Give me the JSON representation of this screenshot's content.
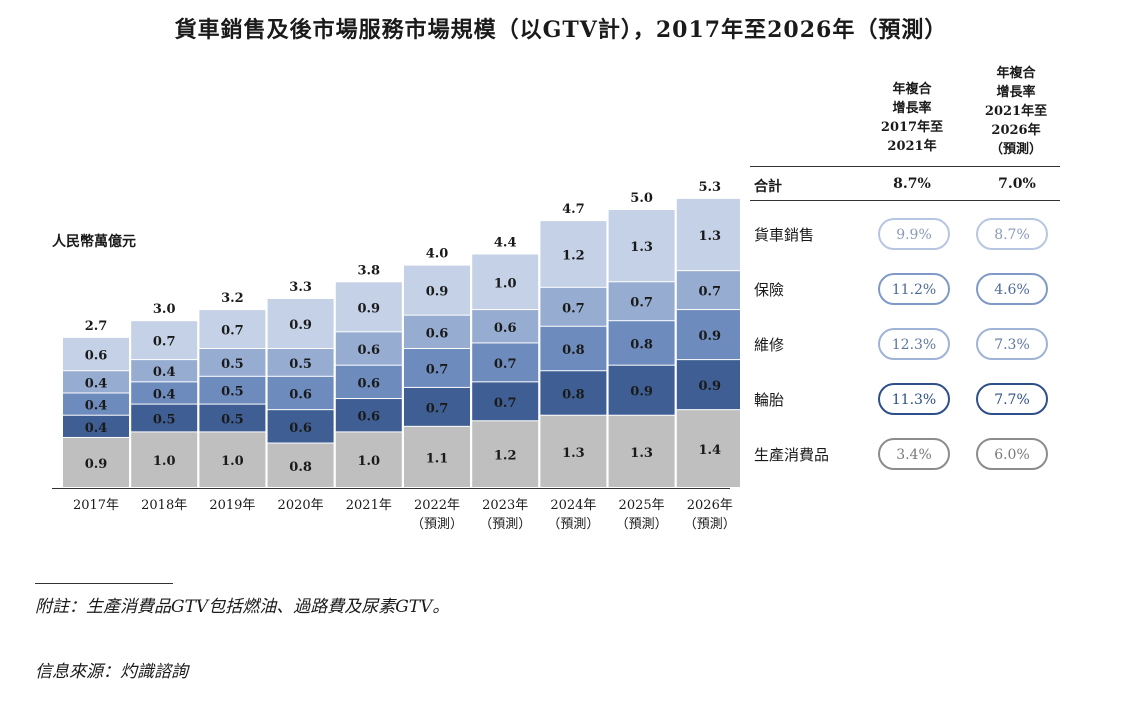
{
  "title": "貨車銷售及後市場服務市場規模（以GTV計），2017年至2026年（預測）",
  "chart_data": {
    "type": "bar",
    "stacked": true,
    "unit_label": "人民幣萬億元",
    "categories": [
      [
        "2017年"
      ],
      [
        "2018年"
      ],
      [
        "2019年"
      ],
      [
        "2020年"
      ],
      [
        "2021年"
      ],
      [
        "2022年",
        "（預測）"
      ],
      [
        "2023年",
        "（預測）"
      ],
      [
        "2024年",
        "（預測）"
      ],
      [
        "2025年",
        "（預測）"
      ],
      [
        "2026年",
        "（預測）"
      ]
    ],
    "totals": [
      "2.7",
      "3.0",
      "3.2",
      "3.3",
      "3.8",
      "4.0",
      "4.4",
      "4.7",
      "5.0",
      "5.3"
    ],
    "series": [
      {
        "name": "生產消費品",
        "color": "#bfbfbf",
        "values": [
          0.9,
          1.0,
          1.0,
          0.8,
          1.0,
          1.1,
          1.2,
          1.3,
          1.3,
          1.4
        ]
      },
      {
        "name": "輪胎",
        "color": "#3f5f94",
        "values": [
          0.4,
          0.5,
          0.5,
          0.6,
          0.6,
          0.7,
          0.7,
          0.8,
          0.9,
          0.9
        ]
      },
      {
        "name": "維修",
        "color": "#6d8bbd",
        "values": [
          0.4,
          0.4,
          0.5,
          0.6,
          0.6,
          0.7,
          0.7,
          0.8,
          0.8,
          0.9
        ]
      },
      {
        "name": "保險",
        "color": "#97acd1",
        "values": [
          0.4,
          0.4,
          0.5,
          0.5,
          0.6,
          0.6,
          0.6,
          0.7,
          0.7,
          0.7
        ]
      },
      {
        "name": "貨車銷售",
        "color": "#c5d1e6",
        "values": [
          0.6,
          0.7,
          0.7,
          0.9,
          0.9,
          0.9,
          1.0,
          1.2,
          1.3,
          1.3
        ]
      }
    ],
    "ylim": [
      0,
      5.5
    ]
  },
  "cagr_table": {
    "header_1": [
      "年複合",
      "增長率",
      "2017年至",
      "2021年"
    ],
    "header_2": [
      "年複合",
      "增長率",
      "2021年至",
      "2026年",
      "（預測）"
    ],
    "total_label": "合計",
    "total_1": "8.7%",
    "total_2": "7.0%",
    "rows": [
      {
        "label": "貨車銷售",
        "v1": "9.9%",
        "v2": "8.7%",
        "color": "#b7c6e0",
        "text_color": "#8a9bb8"
      },
      {
        "label": "保險",
        "v1": "11.2%",
        "v2": "4.6%",
        "color": "#7f9ac6",
        "text_color": "#4f6a98"
      },
      {
        "label": "維修",
        "v1": "12.3%",
        "v2": "7.3%",
        "color": "#9fb3d6",
        "text_color": "#5f789f"
      },
      {
        "label": "輪胎",
        "v1": "11.3%",
        "v2": "7.7%",
        "color": "#2d4f8a",
        "text_color": "#2d4f8a"
      },
      {
        "label": "生產消費品",
        "v1": "3.4%",
        "v2": "6.0%",
        "color": "#8c8c8c",
        "text_color": "#7a7a7a"
      }
    ]
  },
  "note": "附註：生產消費品GTV包括燃油、過路費及尿素GTV。",
  "source": "信息來源：灼識諮詢"
}
